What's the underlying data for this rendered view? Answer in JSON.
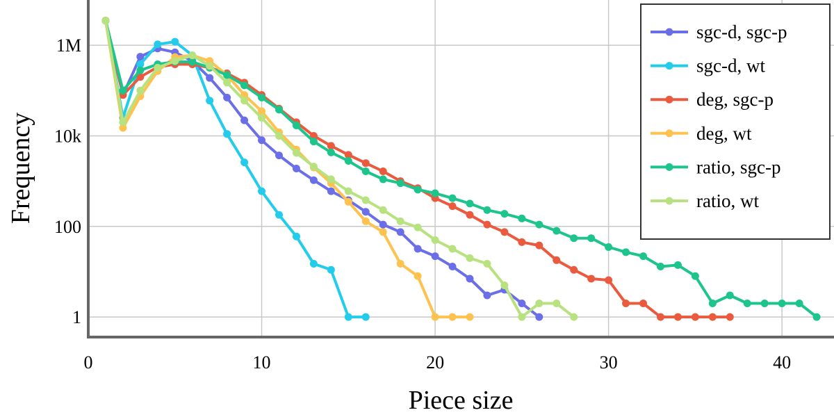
{
  "chart_data": {
    "type": "line",
    "xlabel": "Piece size",
    "ylabel": "Frequency",
    "xlim": [
      0,
      43
    ],
    "ylim": [
      0.36,
      10000000
    ],
    "yscale": "log",
    "xticks": [
      0,
      10,
      20,
      30,
      40
    ],
    "xtick_labels": [
      "0",
      "10",
      "20",
      "30",
      "40"
    ],
    "yticks": [
      1,
      100,
      10000,
      1000000
    ],
    "ytick_labels": [
      "1",
      "100",
      "10k",
      "1M"
    ],
    "grid": true,
    "legend_position": "top-right",
    "series": [
      {
        "name": "sgc-d, sgc-p",
        "color": "#6a6fe8",
        "x": [
          1,
          2,
          3,
          4,
          5,
          6,
          7,
          8,
          9,
          10,
          11,
          12,
          13,
          14,
          15,
          16,
          17,
          18,
          19,
          20,
          21,
          22,
          23,
          24,
          25,
          26
        ],
        "y": [
          3500000,
          80000,
          560000,
          850000,
          700000,
          450000,
          190000,
          70000,
          22000,
          8000,
          3700,
          1900,
          1050,
          600,
          380,
          210,
          110,
          75,
          32,
          22,
          13,
          7,
          3,
          4,
          2,
          1
        ]
      },
      {
        "name": "sgc-d, wt",
        "color": "#22ccea",
        "x": [
          1,
          2,
          3,
          4,
          5,
          6,
          7,
          8,
          9,
          10,
          11,
          12,
          13,
          14,
          15,
          16
        ],
        "y": [
          3500000,
          25000,
          380000,
          1050000,
          1200000,
          600000,
          60000,
          11000,
          2600,
          600,
          180,
          60,
          15,
          11,
          1,
          1
        ]
      },
      {
        "name": "deg, sgc-p",
        "color": "#ea5a3e",
        "x": [
          1,
          2,
          3,
          4,
          5,
          6,
          7,
          8,
          9,
          10,
          11,
          12,
          13,
          14,
          15,
          16,
          17,
          18,
          19,
          20,
          21,
          22,
          23,
          24,
          25,
          26,
          27,
          28,
          29,
          30,
          31,
          32,
          33,
          34,
          35,
          36,
          37
        ],
        "y": [
          3500000,
          80000,
          200000,
          330000,
          380000,
          380000,
          320000,
          240000,
          150000,
          80000,
          40000,
          20000,
          10000,
          6000,
          3800,
          2500,
          1650,
          1000,
          700,
          420,
          280,
          180,
          110,
          75,
          45,
          38,
          18,
          11,
          7,
          6.5,
          2,
          2,
          1,
          1,
          1,
          1,
          1
        ]
      },
      {
        "name": "deg, wt",
        "color": "#fdc24f",
        "x": [
          1,
          2,
          3,
          4,
          5,
          6,
          7,
          8,
          9,
          10,
          11,
          12,
          13,
          14,
          15,
          16,
          17,
          18,
          19,
          20,
          21,
          22
        ],
        "y": [
          3500000,
          15000,
          75000,
          270000,
          550000,
          600000,
          450000,
          220000,
          80000,
          35000,
          12000,
          5000,
          2000,
          900,
          350,
          130,
          75,
          15,
          8,
          1,
          1,
          1
        ]
      },
      {
        "name": "ratio, sgc-p",
        "color": "#1dc48b",
        "x": [
          1,
          2,
          3,
          4,
          5,
          6,
          7,
          8,
          9,
          10,
          11,
          12,
          13,
          14,
          15,
          16,
          17,
          18,
          19,
          20,
          21,
          22,
          23,
          24,
          25,
          26,
          27,
          28,
          29,
          30,
          31,
          32,
          33,
          34,
          35,
          36,
          37,
          38,
          39,
          40,
          41,
          42
        ],
        "y": [
          3500000,
          100000,
          280000,
          380000,
          430000,
          430000,
          320000,
          220000,
          130000,
          70000,
          38000,
          17000,
          7500,
          4300,
          2800,
          1650,
          1100,
          900,
          650,
          540,
          420,
          320,
          230,
          190,
          150,
          110,
          80,
          55,
          55,
          35,
          27,
          22,
          13,
          14,
          8,
          2,
          3,
          2,
          2,
          2,
          2,
          1
        ]
      },
      {
        "name": "ratio, wt",
        "color": "#b8e27f",
        "x": [
          1,
          2,
          3,
          4,
          5,
          6,
          7,
          8,
          9,
          10,
          11,
          12,
          13,
          14,
          15,
          16,
          17,
          18,
          19,
          20,
          21,
          22,
          23,
          24,
          25,
          26,
          27,
          28
        ],
        "y": [
          3500000,
          20000,
          100000,
          320000,
          450000,
          600000,
          350000,
          150000,
          60000,
          25000,
          10000,
          4200,
          2100,
          1100,
          600,
          380,
          230,
          130,
          95,
          50,
          32,
          20,
          15,
          5,
          1,
          2,
          2,
          1
        ]
      }
    ]
  }
}
